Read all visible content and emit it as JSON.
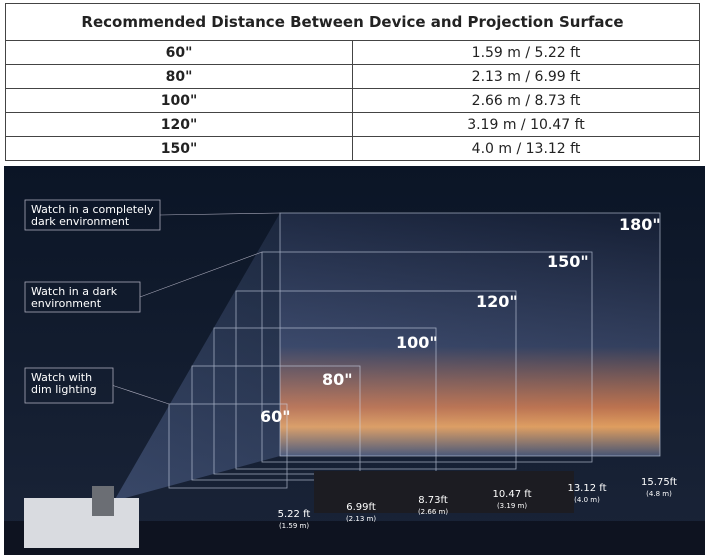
{
  "table": {
    "title": "Recommended Distance Between Device and Projection Surface",
    "rows": [
      [
        "60\"",
        "1.59 m / 5.22 ft"
      ],
      [
        "80\"",
        "2.13 m / 6.99 ft"
      ],
      [
        "100\"",
        "2.66 m / 8.73 ft"
      ],
      [
        "120\"",
        "3.19 m / 10.47 ft"
      ],
      [
        "150\"",
        "4.0 m / 13.12 ft"
      ]
    ]
  },
  "illustration": {
    "environments": [
      [
        "Watch in a completely",
        "dark environment"
      ],
      [
        "Watch in a dark",
        "environment"
      ],
      [
        "Watch with",
        "dim lighting"
      ]
    ],
    "screens": [
      "180\"",
      "150\"",
      "120\"",
      "100\"",
      "80\"",
      "60\""
    ],
    "distances": [
      [
        "5.22 ft",
        "(1.59 m)"
      ],
      [
        "6.99ft",
        "(2.13 m)"
      ],
      [
        "8.73ft",
        "(2.66 m)"
      ],
      [
        "10.47 ft",
        "(3.19 m)"
      ],
      [
        "13.12 ft",
        "(4.0 m)"
      ],
      [
        "15.75ft",
        "(4.8 m)"
      ]
    ]
  }
}
